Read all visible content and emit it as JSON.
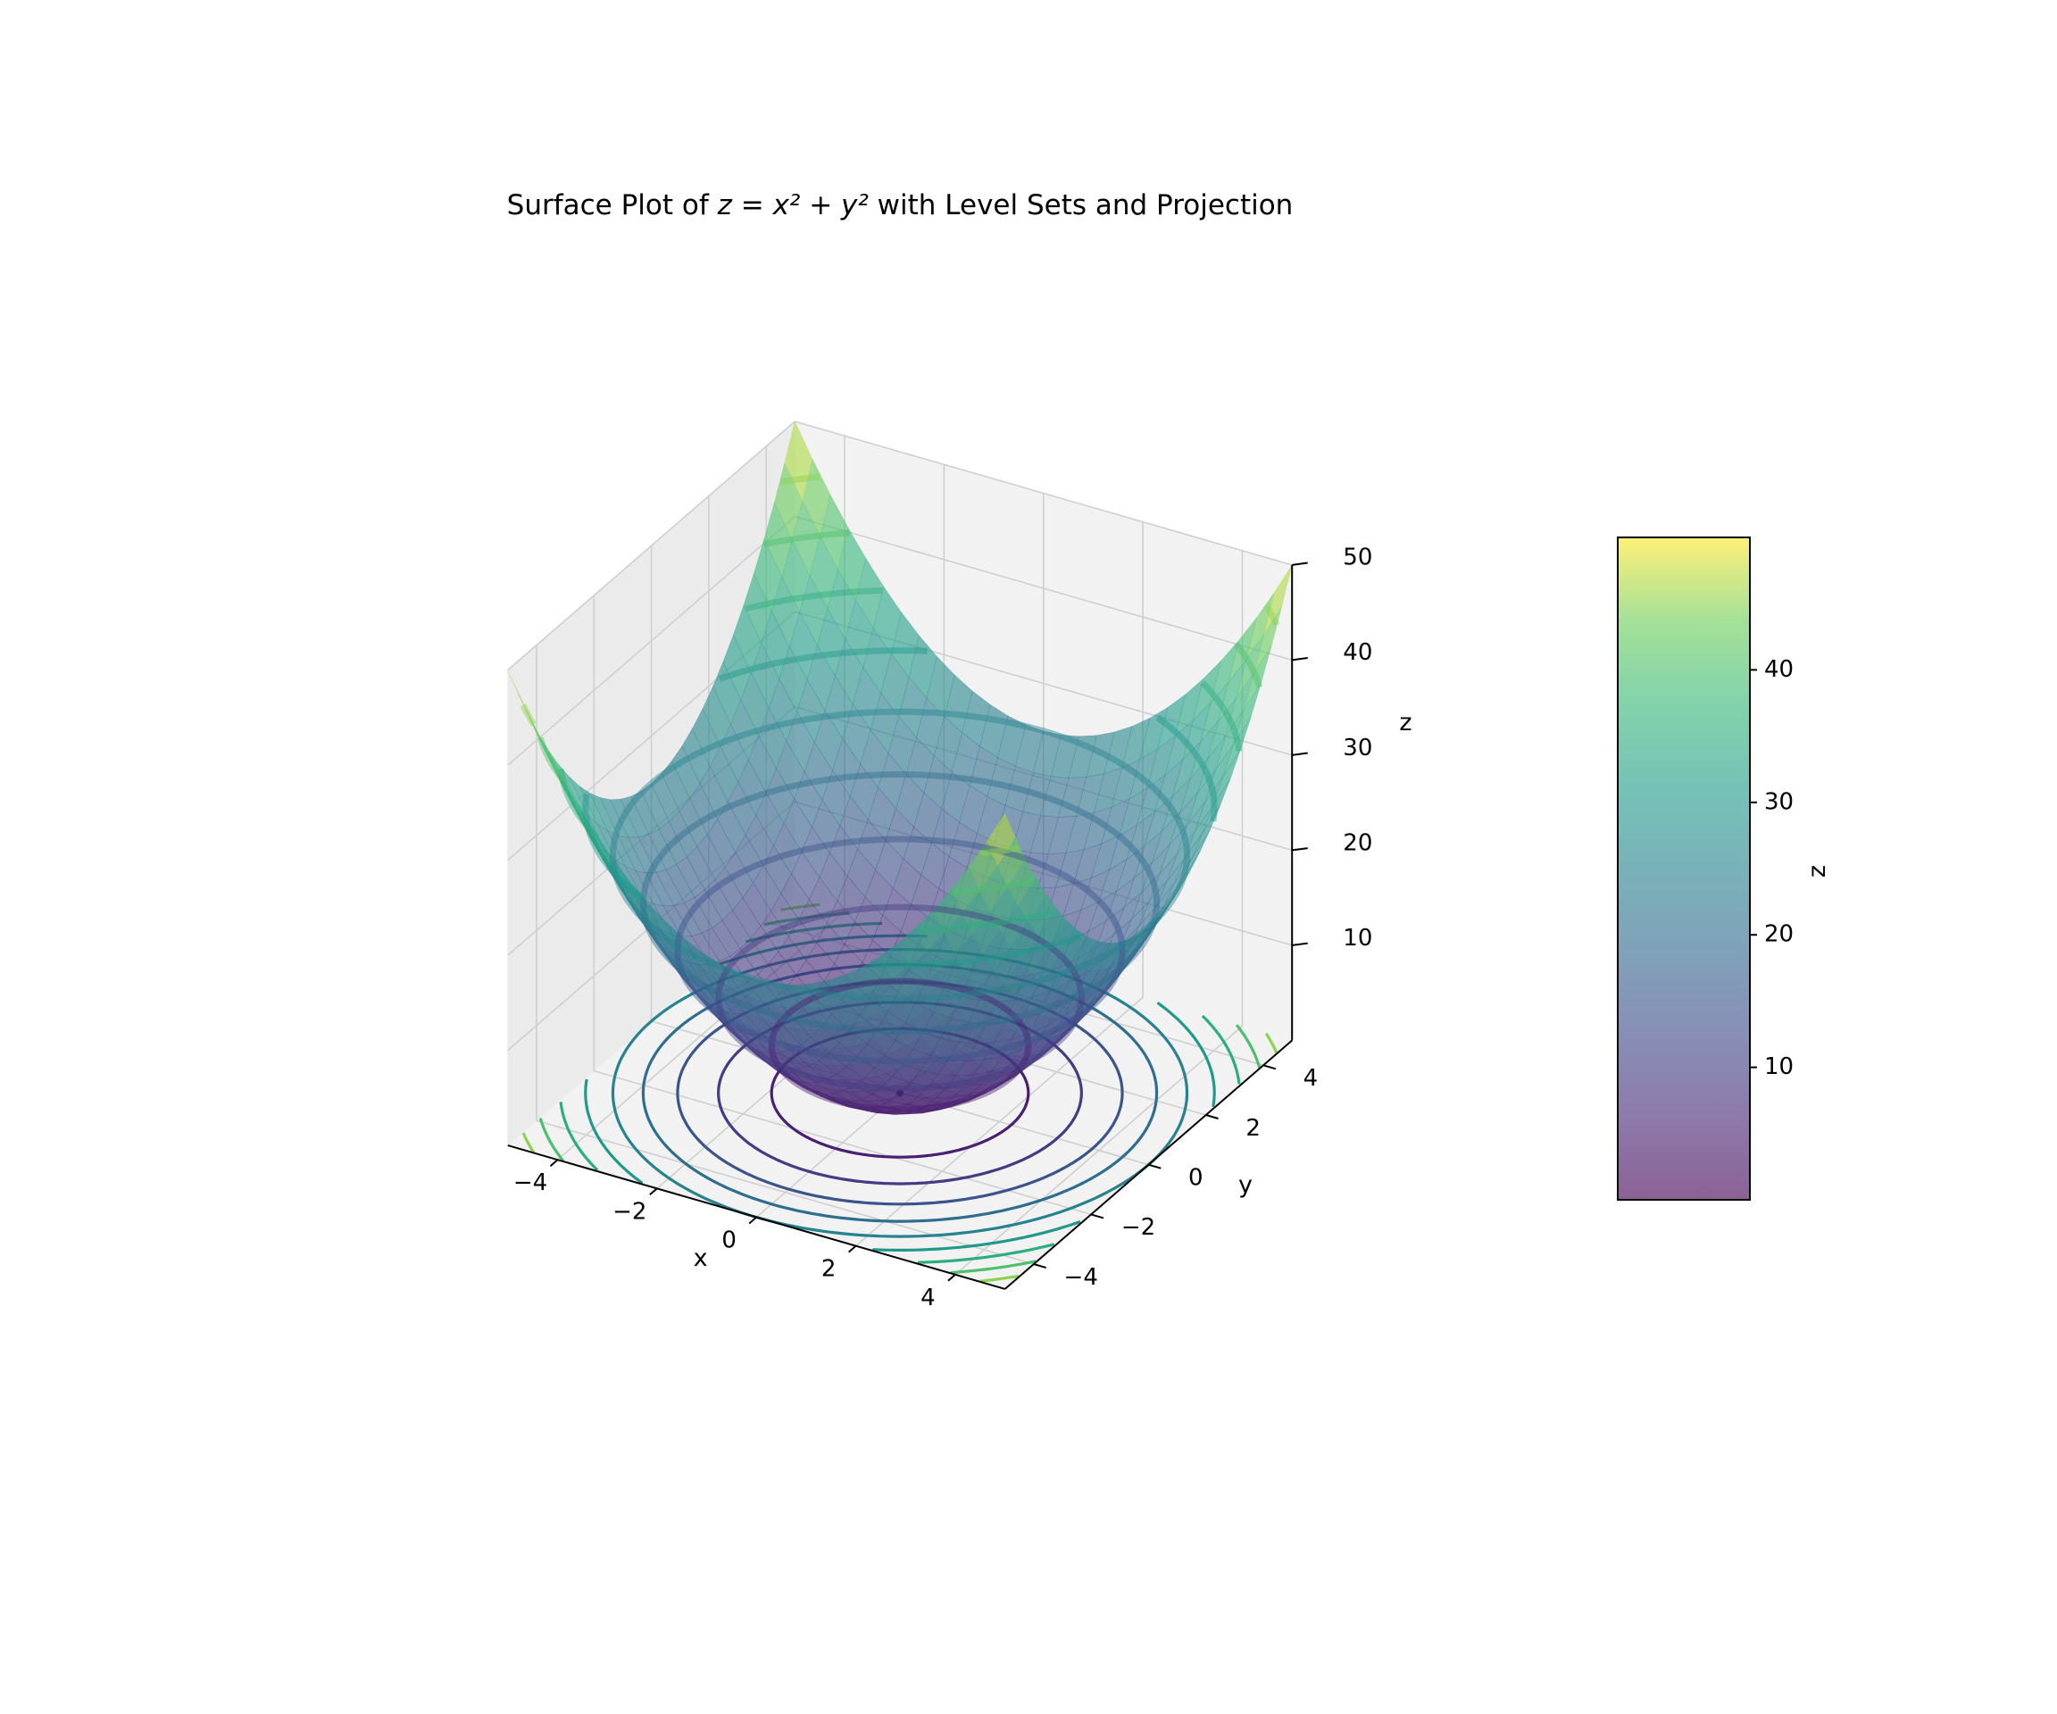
{
  "chart_data": {
    "type": "surface3d",
    "title_prefix": "Surface Plot of ",
    "title_math": "z = x² + y²",
    "title_suffix": " with Level Sets and Projection",
    "function": "z = x^2 + y^2",
    "xlabel": "x",
    "ylabel": "y",
    "zlabel": "z",
    "xlim": [
      -5,
      5
    ],
    "ylim": [
      -5,
      5
    ],
    "zlim": [
      0,
      50
    ],
    "x_ticks": [
      {
        "value": -4,
        "label": "−4"
      },
      {
        "value": -2,
        "label": "−2"
      },
      {
        "value": 0,
        "label": "0"
      },
      {
        "value": 2,
        "label": "2"
      },
      {
        "value": 4,
        "label": "4"
      }
    ],
    "y_ticks": [
      {
        "value": -4,
        "label": "−4"
      },
      {
        "value": -2,
        "label": "−2"
      },
      {
        "value": 0,
        "label": "0"
      },
      {
        "value": 2,
        "label": "2"
      },
      {
        "value": 4,
        "label": "4"
      }
    ],
    "z_ticks": [
      {
        "value": 10,
        "label": "10"
      },
      {
        "value": 20,
        "label": "20"
      },
      {
        "value": 30,
        "label": "30"
      },
      {
        "value": 40,
        "label": "40"
      },
      {
        "value": 50,
        "label": "50"
      }
    ],
    "level_sets_z": [
      5,
      10,
      15,
      20,
      25,
      30,
      35,
      40,
      45
    ],
    "projection_levels": [
      0,
      5,
      10,
      15,
      20,
      25,
      30,
      35,
      40,
      45
    ],
    "colormap": "viridis",
    "surface_alpha": 0.6,
    "grid": true,
    "colorbar": {
      "label": "z",
      "range": [
        0,
        50
      ],
      "ticks": [
        {
          "value": 10,
          "label": "10"
        },
        {
          "value": 20,
          "label": "20"
        },
        {
          "value": 30,
          "label": "30"
        },
        {
          "value": 40,
          "label": "40"
        }
      ]
    }
  }
}
